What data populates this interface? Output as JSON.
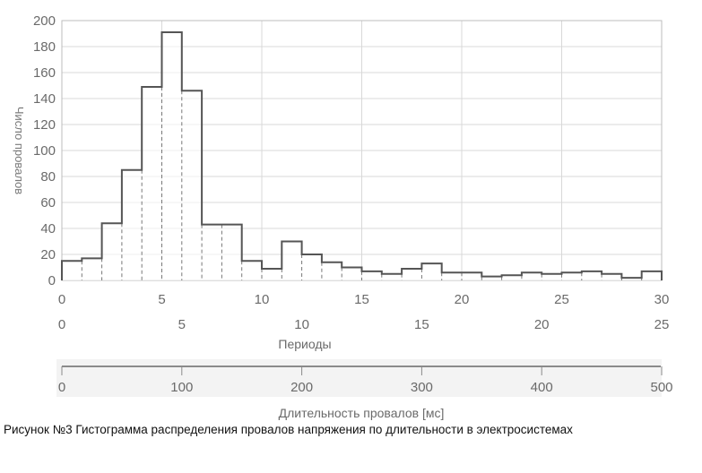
{
  "chart_data": {
    "type": "bar",
    "ylabel": "Число провалов",
    "ylim": [
      0,
      200
    ],
    "yticks": [
      0,
      20,
      40,
      60,
      80,
      100,
      120,
      140,
      160,
      180,
      200
    ],
    "x_primary": {
      "ticks": [
        0,
        5,
        10,
        15,
        20,
        25,
        30
      ],
      "range": [
        0,
        30
      ]
    },
    "x_periods": {
      "label": "Периоды",
      "ticks": [
        0,
        5,
        10,
        15,
        20,
        25
      ],
      "range": [
        0,
        25
      ]
    },
    "x_duration": {
      "label": "Длительность провалов [мс]",
      "ticks": [
        0,
        100,
        200,
        300,
        400,
        500
      ],
      "range": [
        0,
        500
      ]
    },
    "bin_width": 1,
    "values": [
      15,
      17,
      44,
      85,
      149,
      191,
      146,
      43,
      43,
      15,
      9,
      30,
      20,
      14,
      10,
      7,
      5,
      9,
      13,
      6,
      6,
      3,
      4,
      6,
      5,
      6,
      7,
      5,
      2,
      7
    ],
    "grid": true,
    "line_color": "#555555",
    "grid_color": "#d8d8d8"
  },
  "caption": "Рисунок №3 Гистограмма распределения провалов напряжения по длительности в электросистемах"
}
